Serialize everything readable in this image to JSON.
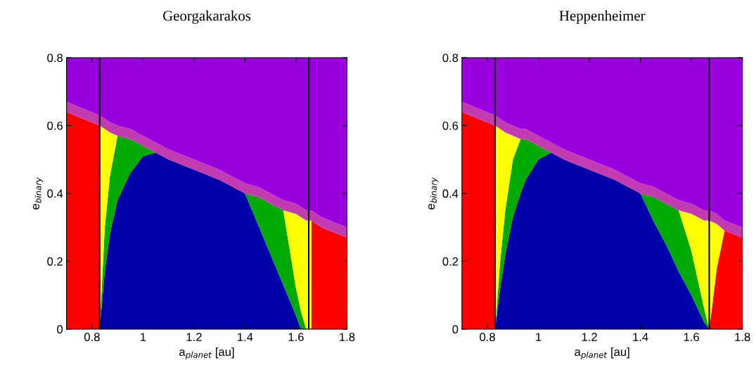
{
  "chart_data": [
    {
      "type": "area",
      "stacked": true,
      "title": "Georgakarakos",
      "xlabel": "a$_{planet}$ [au]",
      "ylabel": "e$_{binary}$",
      "xlim": [
        0.7,
        1.8
      ],
      "ylim": [
        0,
        0.8
      ],
      "xticks": [
        0.8,
        1,
        1.2,
        1.4,
        1.6,
        1.8
      ],
      "yticks": [
        0,
        0.2,
        0.4,
        0.6,
        0.8
      ],
      "grid": false,
      "legend": false,
      "x": [
        0.7,
        0.83,
        0.83,
        0.85,
        0.87,
        0.9,
        0.95,
        1.0,
        1.05,
        1.1,
        1.2,
        1.3,
        1.4,
        1.45,
        1.5,
        1.55,
        1.6,
        1.62,
        1.64,
        1.66,
        1.66,
        1.7,
        1.8
      ],
      "series": [
        {
          "color": "#0000aa",
          "values": [
            null,
            null,
            0,
            0.17,
            0.28,
            0.38,
            0.46,
            0.51,
            0.52,
            0.5,
            0.47,
            0.44,
            0.4,
            0.31,
            0.22,
            0.13,
            0.04,
            0,
            null,
            null,
            null,
            null,
            null
          ]
        },
        {
          "color": "#00aa00",
          "values": [
            null,
            null,
            0,
            0.13,
            0.17,
            0.19,
            0.1,
            0.03,
            0,
            null,
            null,
            null,
            0,
            0.08,
            0.15,
            0.22,
            0.08,
            0.05,
            0,
            null,
            null,
            null,
            null
          ]
        },
        {
          "color": "#ff0000",
          "values": [
            0.64,
            0.6,
            0,
            null,
            null,
            null,
            null,
            null,
            null,
            null,
            null,
            null,
            null,
            null,
            null,
            null,
            null,
            null,
            null,
            0,
            0.32,
            0.3,
            0.27
          ]
        },
        {
          "color": "#ffff00",
          "values": [
            null,
            0,
            0.6,
            0.29,
            0.13,
            0,
            null,
            null,
            null,
            null,
            null,
            null,
            null,
            null,
            null,
            0,
            0.22,
            0.28,
            0.32,
            0.32,
            0,
            null,
            null
          ]
        },
        {
          "color": "#c23bb0",
          "values": [
            0.03,
            0.03,
            0.03,
            0.03,
            0.03,
            0.03,
            0.03,
            0.03,
            0.03,
            0.03,
            0.03,
            0.03,
            0.03,
            0.03,
            0.03,
            0.03,
            0.03,
            0.03,
            0.03,
            0.03,
            0.03,
            0.03,
            0.03
          ]
        },
        {
          "color": "#9900dd",
          "values": [
            0.13,
            0.17,
            0.17,
            0.18,
            0.19,
            0.2,
            0.21,
            0.23,
            0.25,
            0.27,
            0.3,
            0.33,
            0.37,
            0.38,
            0.4,
            0.42,
            0.43,
            0.44,
            0.45,
            0.45,
            0.45,
            0.47,
            0.5
          ]
        }
      ],
      "ref_lines": [
        {
          "axis": "x",
          "value": 0.83,
          "color": "#000000"
        },
        {
          "axis": "x",
          "value": 1.65,
          "color": "#000000"
        }
      ]
    },
    {
      "type": "area",
      "stacked": true,
      "title": "Heppenheimer",
      "xlabel": "a$_{planet}$ [au]",
      "ylabel": "e$_{binary}$",
      "xlim": [
        0.7,
        1.8
      ],
      "ylim": [
        0,
        0.8
      ],
      "xticks": [
        0.8,
        1,
        1.2,
        1.4,
        1.6,
        1.8
      ],
      "yticks": [
        0,
        0.2,
        0.4,
        0.6,
        0.8
      ],
      "grid": false,
      "legend": false,
      "x": [
        0.7,
        0.83,
        0.83,
        0.85,
        0.87,
        0.9,
        0.93,
        0.95,
        1.0,
        1.05,
        1.1,
        1.2,
        1.3,
        1.4,
        1.45,
        1.5,
        1.55,
        1.6,
        1.65,
        1.67,
        1.7,
        1.73,
        1.8
      ],
      "series": [
        {
          "color": "#0000aa",
          "values": [
            null,
            null,
            0,
            0.12,
            0.22,
            0.33,
            0.4,
            0.44,
            0.5,
            0.52,
            0.5,
            0.47,
            0.44,
            0.4,
            0.32,
            0.25,
            0.17,
            0.1,
            0.02,
            0,
            null,
            null,
            null
          ]
        },
        {
          "color": "#00aa00",
          "values": [
            null,
            null,
            0,
            0.08,
            0.13,
            0.17,
            0.16,
            0.12,
            0.04,
            0,
            null,
            null,
            null,
            0,
            0.07,
            0.12,
            0.18,
            0.13,
            0.04,
            0,
            null,
            null,
            null
          ]
        },
        {
          "color": "#ff0000",
          "values": [
            0.64,
            0.6,
            0,
            null,
            null,
            null,
            null,
            null,
            null,
            null,
            null,
            null,
            null,
            null,
            null,
            null,
            null,
            null,
            null,
            0,
            0.18,
            0.29,
            0.27
          ]
        },
        {
          "color": "#ffff00",
          "values": [
            null,
            0,
            0.6,
            0.39,
            0.23,
            0.07,
            0,
            null,
            null,
            null,
            null,
            null,
            null,
            null,
            null,
            null,
            0,
            0.11,
            0.26,
            0.32,
            0.13,
            0,
            null
          ]
        },
        {
          "color": "#c23bb0",
          "values": [
            0.03,
            0.03,
            0.03,
            0.03,
            0.03,
            0.03,
            0.03,
            0.03,
            0.03,
            0.03,
            0.03,
            0.03,
            0.03,
            0.03,
            0.03,
            0.03,
            0.03,
            0.03,
            0.03,
            0.03,
            0.03,
            0.03,
            0.03
          ]
        },
        {
          "color": "#9900dd",
          "values": [
            0.13,
            0.17,
            0.17,
            0.18,
            0.19,
            0.2,
            0.21,
            0.21,
            0.23,
            0.25,
            0.27,
            0.3,
            0.33,
            0.37,
            0.38,
            0.4,
            0.42,
            0.43,
            0.45,
            0.45,
            0.46,
            0.48,
            0.5
          ]
        }
      ],
      "ref_lines": [
        {
          "axis": "x",
          "value": 0.83,
          "color": "#000000"
        },
        {
          "axis": "x",
          "value": 1.67,
          "color": "#000000"
        }
      ]
    }
  ]
}
